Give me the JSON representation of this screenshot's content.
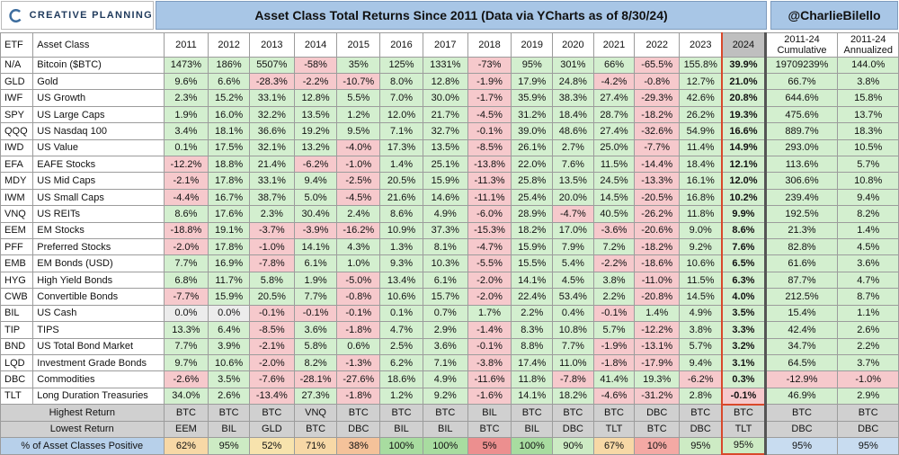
{
  "header": {
    "logo_text": "CREATIVE PLANNING",
    "title": "Asset Class Total Returns Since 2011 (Data via YCharts as of 8/30/24)",
    "handle": "@CharlieBilello"
  },
  "colors": {
    "positive": "#d3efcf",
    "negative": "#f6c9cc",
    "header_blue": "#a8c6e6",
    "highlight_border": "#d9482b",
    "summary_gray": "#d0d0d0"
  },
  "columns": {
    "etf": "ETF",
    "asset": "Asset Class",
    "years": [
      "2011",
      "2012",
      "2013",
      "2014",
      "2015",
      "2016",
      "2017",
      "2018",
      "2019",
      "2020",
      "2021",
      "2022",
      "2023",
      "2024"
    ],
    "cum1": "2011-24",
    "cum2": "Cumulative",
    "ann1": "2011-24",
    "ann2": "Annualized"
  },
  "chart_data": {
    "type": "table",
    "title": "Asset Class Total Returns Since 2011 (Data via YCharts as of 8/30/24)",
    "rows": [
      {
        "etf": "N/A",
        "name": "Bitcoin ($BTC)",
        "values": [
          "1473%",
          "186%",
          "5507%",
          "-58%",
          "35%",
          "125%",
          "1331%",
          "-73%",
          "95%",
          "301%",
          "66%",
          "-65.5%",
          "155.8%",
          "39.9%"
        ],
        "cum": "19709239%",
        "ann": "144.0%"
      },
      {
        "etf": "GLD",
        "name": "Gold",
        "values": [
          "9.6%",
          "6.6%",
          "-28.3%",
          "-2.2%",
          "-10.7%",
          "8.0%",
          "12.8%",
          "-1.9%",
          "17.9%",
          "24.8%",
          "-4.2%",
          "-0.8%",
          "12.7%",
          "21.0%"
        ],
        "cum": "66.7%",
        "ann": "3.8%"
      },
      {
        "etf": "IWF",
        "name": "US Growth",
        "values": [
          "2.3%",
          "15.2%",
          "33.1%",
          "12.8%",
          "5.5%",
          "7.0%",
          "30.0%",
          "-1.7%",
          "35.9%",
          "38.3%",
          "27.4%",
          "-29.3%",
          "42.6%",
          "20.8%"
        ],
        "cum": "644.6%",
        "ann": "15.8%"
      },
      {
        "etf": "SPY",
        "name": "US Large Caps",
        "values": [
          "1.9%",
          "16.0%",
          "32.2%",
          "13.5%",
          "1.2%",
          "12.0%",
          "21.7%",
          "-4.5%",
          "31.2%",
          "18.4%",
          "28.7%",
          "-18.2%",
          "26.2%",
          "19.3%"
        ],
        "cum": "475.6%",
        "ann": "13.7%"
      },
      {
        "etf": "QQQ",
        "name": "US Nasdaq 100",
        "values": [
          "3.4%",
          "18.1%",
          "36.6%",
          "19.2%",
          "9.5%",
          "7.1%",
          "32.7%",
          "-0.1%",
          "39.0%",
          "48.6%",
          "27.4%",
          "-32.6%",
          "54.9%",
          "16.6%"
        ],
        "cum": "889.7%",
        "ann": "18.3%"
      },
      {
        "etf": "IWD",
        "name": "US Value",
        "values": [
          "0.1%",
          "17.5%",
          "32.1%",
          "13.2%",
          "-4.0%",
          "17.3%",
          "13.5%",
          "-8.5%",
          "26.1%",
          "2.7%",
          "25.0%",
          "-7.7%",
          "11.4%",
          "14.9%"
        ],
        "cum": "293.0%",
        "ann": "10.5%"
      },
      {
        "etf": "EFA",
        "name": "EAFE Stocks",
        "values": [
          "-12.2%",
          "18.8%",
          "21.4%",
          "-6.2%",
          "-1.0%",
          "1.4%",
          "25.1%",
          "-13.8%",
          "22.0%",
          "7.6%",
          "11.5%",
          "-14.4%",
          "18.4%",
          "12.1%"
        ],
        "cum": "113.6%",
        "ann": "5.7%"
      },
      {
        "etf": "MDY",
        "name": "US Mid Caps",
        "values": [
          "-2.1%",
          "17.8%",
          "33.1%",
          "9.4%",
          "-2.5%",
          "20.5%",
          "15.9%",
          "-11.3%",
          "25.8%",
          "13.5%",
          "24.5%",
          "-13.3%",
          "16.1%",
          "12.0%"
        ],
        "cum": "306.6%",
        "ann": "10.8%"
      },
      {
        "etf": "IWM",
        "name": "US Small Caps",
        "values": [
          "-4.4%",
          "16.7%",
          "38.7%",
          "5.0%",
          "-4.5%",
          "21.6%",
          "14.6%",
          "-11.1%",
          "25.4%",
          "20.0%",
          "14.5%",
          "-20.5%",
          "16.8%",
          "10.2%"
        ],
        "cum": "239.4%",
        "ann": "9.4%"
      },
      {
        "etf": "VNQ",
        "name": "US REITs",
        "values": [
          "8.6%",
          "17.6%",
          "2.3%",
          "30.4%",
          "2.4%",
          "8.6%",
          "4.9%",
          "-6.0%",
          "28.9%",
          "-4.7%",
          "40.5%",
          "-26.2%",
          "11.8%",
          "9.9%"
        ],
        "cum": "192.5%",
        "ann": "8.2%"
      },
      {
        "etf": "EEM",
        "name": "EM Stocks",
        "values": [
          "-18.8%",
          "19.1%",
          "-3.7%",
          "-3.9%",
          "-16.2%",
          "10.9%",
          "37.3%",
          "-15.3%",
          "18.2%",
          "17.0%",
          "-3.6%",
          "-20.6%",
          "9.0%",
          "8.6%"
        ],
        "cum": "21.3%",
        "ann": "1.4%"
      },
      {
        "etf": "PFF",
        "name": "Preferred Stocks",
        "values": [
          "-2.0%",
          "17.8%",
          "-1.0%",
          "14.1%",
          "4.3%",
          "1.3%",
          "8.1%",
          "-4.7%",
          "15.9%",
          "7.9%",
          "7.2%",
          "-18.2%",
          "9.2%",
          "7.6%"
        ],
        "cum": "82.8%",
        "ann": "4.5%"
      },
      {
        "etf": "EMB",
        "name": "EM Bonds (USD)",
        "values": [
          "7.7%",
          "16.9%",
          "-7.8%",
          "6.1%",
          "1.0%",
          "9.3%",
          "10.3%",
          "-5.5%",
          "15.5%",
          "5.4%",
          "-2.2%",
          "-18.6%",
          "10.6%",
          "6.5%"
        ],
        "cum": "61.6%",
        "ann": "3.6%"
      },
      {
        "etf": "HYG",
        "name": "High Yield Bonds",
        "values": [
          "6.8%",
          "11.7%",
          "5.8%",
          "1.9%",
          "-5.0%",
          "13.4%",
          "6.1%",
          "-2.0%",
          "14.1%",
          "4.5%",
          "3.8%",
          "-11.0%",
          "11.5%",
          "6.3%"
        ],
        "cum": "87.7%",
        "ann": "4.7%"
      },
      {
        "etf": "CWB",
        "name": "Convertible Bonds",
        "values": [
          "-7.7%",
          "15.9%",
          "20.5%",
          "7.7%",
          "-0.8%",
          "10.6%",
          "15.7%",
          "-2.0%",
          "22.4%",
          "53.4%",
          "2.2%",
          "-20.8%",
          "14.5%",
          "4.0%"
        ],
        "cum": "212.5%",
        "ann": "8.7%"
      },
      {
        "etf": "BIL",
        "name": "US Cash",
        "values": [
          "0.0%",
          "0.0%",
          "-0.1%",
          "-0.1%",
          "-0.1%",
          "0.1%",
          "0.7%",
          "1.7%",
          "2.2%",
          "0.4%",
          "-0.1%",
          "1.4%",
          "4.9%",
          "3.5%"
        ],
        "cum": "15.4%",
        "ann": "1.1%"
      },
      {
        "etf": "TIP",
        "name": "TIPS",
        "values": [
          "13.3%",
          "6.4%",
          "-8.5%",
          "3.6%",
          "-1.8%",
          "4.7%",
          "2.9%",
          "-1.4%",
          "8.3%",
          "10.8%",
          "5.7%",
          "-12.2%",
          "3.8%",
          "3.3%"
        ],
        "cum": "42.4%",
        "ann": "2.6%"
      },
      {
        "etf": "BND",
        "name": "US Total Bond Market",
        "values": [
          "7.7%",
          "3.9%",
          "-2.1%",
          "5.8%",
          "0.6%",
          "2.5%",
          "3.6%",
          "-0.1%",
          "8.8%",
          "7.7%",
          "-1.9%",
          "-13.1%",
          "5.7%",
          "3.2%"
        ],
        "cum": "34.7%",
        "ann": "2.2%"
      },
      {
        "etf": "LQD",
        "name": "Investment Grade Bonds",
        "values": [
          "9.7%",
          "10.6%",
          "-2.0%",
          "8.2%",
          "-1.3%",
          "6.2%",
          "7.1%",
          "-3.8%",
          "17.4%",
          "11.0%",
          "-1.8%",
          "-17.9%",
          "9.4%",
          "3.1%"
        ],
        "cum": "64.5%",
        "ann": "3.7%"
      },
      {
        "etf": "DBC",
        "name": "Commodities",
        "values": [
          "-2.6%",
          "3.5%",
          "-7.6%",
          "-28.1%",
          "-27.6%",
          "18.6%",
          "4.9%",
          "-11.6%",
          "11.8%",
          "-7.8%",
          "41.4%",
          "19.3%",
          "-6.2%",
          "0.3%"
        ],
        "cum": "-12.9%",
        "ann": "-1.0%"
      },
      {
        "etf": "TLT",
        "name": "Long Duration Treasuries",
        "values": [
          "34.0%",
          "2.6%",
          "-13.4%",
          "27.3%",
          "-1.8%",
          "1.2%",
          "9.2%",
          "-1.6%",
          "14.1%",
          "18.2%",
          "-4.6%",
          "-31.2%",
          "2.8%",
          "-0.1%"
        ],
        "cum": "46.9%",
        "ann": "2.9%"
      }
    ],
    "summary": [
      {
        "label": "Highest Return",
        "values": [
          "BTC",
          "BTC",
          "BTC",
          "VNQ",
          "BTC",
          "BTC",
          "BTC",
          "BIL",
          "BTC",
          "BTC",
          "BTC",
          "DBC",
          "BTC",
          "BTC"
        ],
        "cum": "BTC",
        "ann": "BTC"
      },
      {
        "label": "Lowest Return",
        "values": [
          "EEM",
          "BIL",
          "GLD",
          "BTC",
          "DBC",
          "BIL",
          "BIL",
          "BTC",
          "BIL",
          "DBC",
          "TLT",
          "BTC",
          "DBC",
          "TLT"
        ],
        "cum": "DBC",
        "ann": "DBC"
      },
      {
        "label": "% of Asset Classes Positive",
        "values": [
          "62%",
          "95%",
          "52%",
          "71%",
          "38%",
          "100%",
          "100%",
          "5%",
          "100%",
          "90%",
          "67%",
          "10%",
          "95%",
          "95%"
        ],
        "cum": "95%",
        "ann": "95%"
      }
    ],
    "pct_colors": [
      "#f7d8a6",
      "#cdebc4",
      "#f7e3ad",
      "#f7d8a6",
      "#f4c29a",
      "#a8dca0",
      "#a8dca0",
      "#ec8f8f",
      "#a8dca0",
      "#cdebc4",
      "#f7d8a6",
      "#f4a9a4",
      "#cdebc4",
      "#cdebc4"
    ],
    "highlight_year": "2024"
  }
}
